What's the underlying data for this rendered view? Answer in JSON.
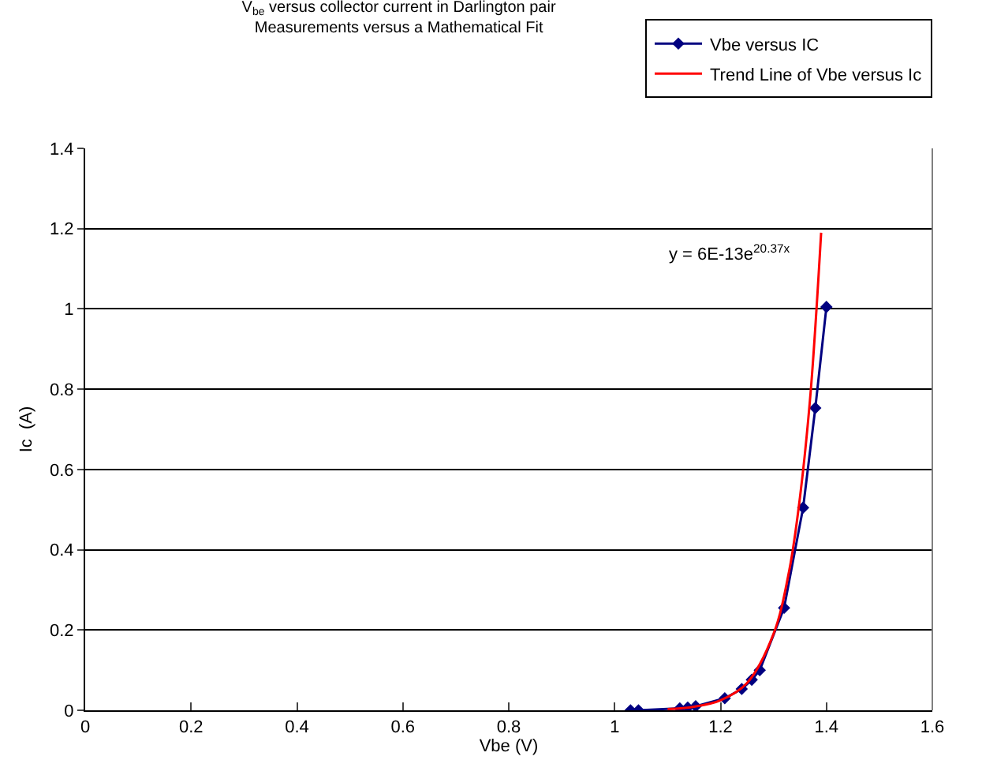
{
  "chart_data": {
    "type": "line",
    "title": "V$_{be}$ versus collector current in Darlington pair",
    "subtitle": "Measurements versus a Mathematical Fit",
    "xlabel": "Vbe (V)",
    "ylabel": "Ic  (A)",
    "series": [
      {
        "name": "Vbe versus IC",
        "color": "#000080",
        "marker": "diamond",
        "x": [
          1.03,
          1.045,
          1.123,
          1.138,
          1.153,
          1.208,
          1.24,
          1.259,
          1.274,
          1.32,
          1.356,
          1.379,
          1.4
        ],
        "values": [
          0,
          0,
          0.005,
          0.007,
          0.01,
          0.03,
          0.053,
          0.076,
          0.1,
          0.255,
          0.505,
          0.753,
          1.005
        ]
      },
      {
        "name": "Trend Line of Vbe versus Ic",
        "color": "#ff0000",
        "marker": "none",
        "x": [
          1.1,
          1.15,
          1.2,
          1.25,
          1.3,
          1.33,
          1.35,
          1.37,
          1.39
        ],
        "values": [
          0.003,
          0.009,
          0.025,
          0.068,
          0.19,
          0.35,
          0.53,
          0.79,
          1.19
        ]
      }
    ],
    "annotations": [
      "y = 6E-13e$^{20.37x}$"
    ],
    "xlim": [
      0,
      1.6
    ],
    "xticks": [
      0,
      0.2,
      0.4,
      0.6,
      0.8,
      1,
      1.2,
      1.4,
      1.6
    ],
    "ylim": [
      0,
      1.4
    ],
    "yticks": [
      0,
      0.2,
      0.4,
      0.6,
      0.8,
      1,
      1.2,
      1.4
    ],
    "grid": "y",
    "legend": "top right",
    "line_style": "solid"
  }
}
